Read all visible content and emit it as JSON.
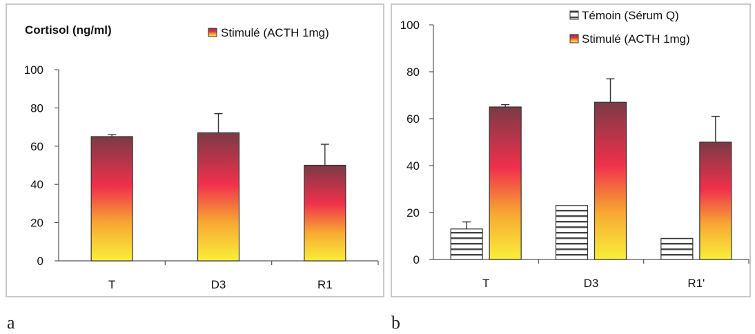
{
  "figure": {
    "panel_a_label": "a",
    "panel_b_label": "b"
  },
  "colors": {
    "gradient_top": "#7b3a46",
    "gradient_mid": "#f0304c",
    "gradient_low": "#f7a832",
    "gradient_bottom": "#f8ef3a",
    "control_stripe": "#444444",
    "axis": "#555555"
  },
  "chart_data": [
    {
      "type": "bar",
      "panel": "a",
      "title": "Cortisol (ng/ml)",
      "categories": [
        "T",
        "D3",
        "R1"
      ],
      "series": [
        {
          "name": "Stimulé (ACTH 1mg)",
          "style": "gradient",
          "values": [
            65,
            67,
            50
          ],
          "error": [
            1,
            10,
            11
          ]
        }
      ],
      "ylim": [
        0,
        100
      ],
      "yticks": [
        0,
        20,
        40,
        60,
        80,
        100
      ],
      "legend_position": "top-right",
      "grid": false
    },
    {
      "type": "bar",
      "panel": "b",
      "categories": [
        "T",
        "D3",
        "R1'"
      ],
      "series": [
        {
          "name": "Témoin (Sérum Q)",
          "style": "striped",
          "values": [
            13,
            23,
            9
          ],
          "error": [
            3,
            0,
            0
          ]
        },
        {
          "name": "Stimulé (ACTH 1mg)",
          "style": "gradient",
          "values": [
            65,
            67,
            50
          ],
          "error": [
            1,
            10,
            11
          ]
        }
      ],
      "ylim": [
        0,
        100
      ],
      "yticks": [
        0,
        20,
        40,
        60,
        80,
        100
      ],
      "legend_position": "top-right",
      "grid": false
    }
  ]
}
